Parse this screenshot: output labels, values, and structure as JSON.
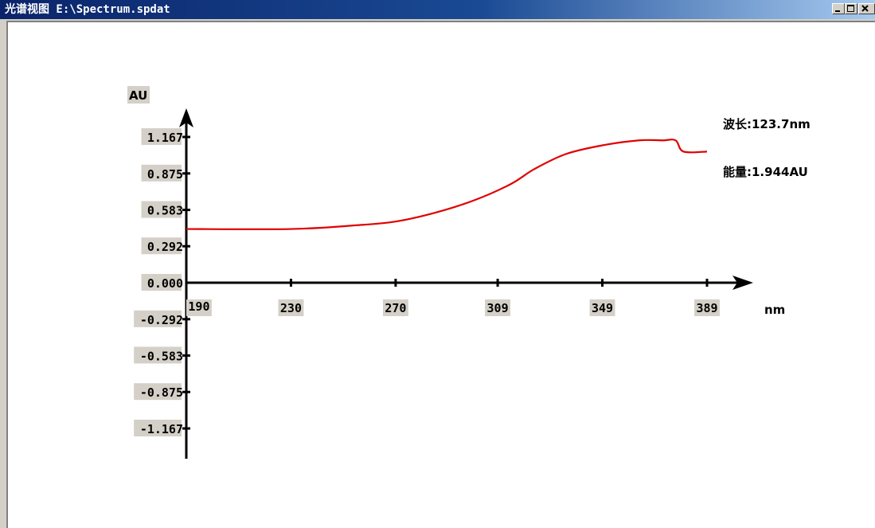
{
  "window": {
    "title": "光谱视图 E:\\Spectrum.spdat"
  },
  "readout": {
    "wavelength": "波长:123.7nm",
    "energy": "能量:1.944AU"
  },
  "chart_data": {
    "type": "line",
    "ylabel": "AU",
    "xlabel": "nm",
    "xlim": [
      190,
      389
    ],
    "ylim": [
      -1.167,
      1.167
    ],
    "x_ticks": [
      "190",
      "230",
      "270",
      "309",
      "349",
      "389"
    ],
    "y_ticks": [
      "1.167",
      "0.875",
      "0.583",
      "0.292",
      "0.000",
      "-0.292",
      "-0.583",
      "-0.875",
      "-1.167"
    ],
    "series": [
      {
        "color": "#e00000",
        "x": [
          190,
          230,
          255,
          270,
          285,
          300,
          314,
          323,
          335,
          349,
          363,
          372,
          377,
          380,
          389
        ],
        "y": [
          0.43,
          0.43,
          0.46,
          0.49,
          0.56,
          0.66,
          0.79,
          0.91,
          1.03,
          1.1,
          1.14,
          1.14,
          1.14,
          1.05,
          1.05
        ]
      }
    ]
  }
}
